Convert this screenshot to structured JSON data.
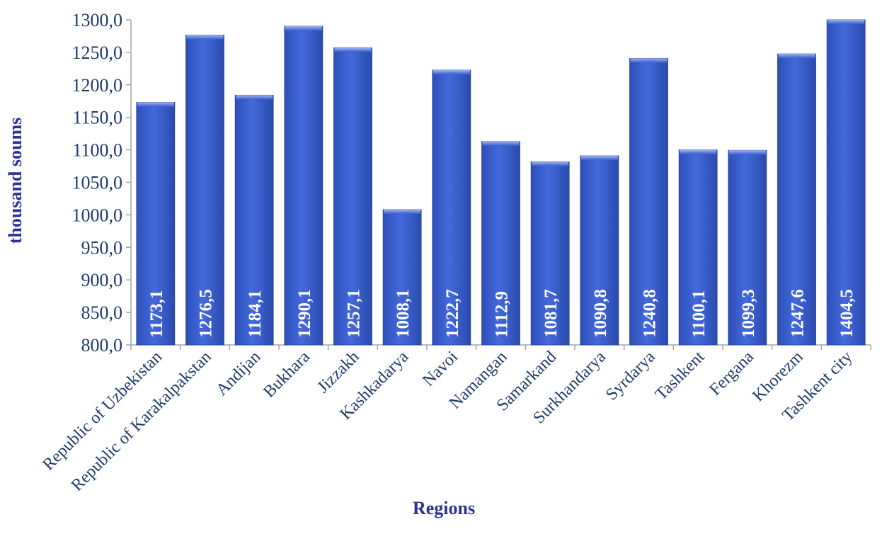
{
  "chart_data": {
    "type": "bar",
    "title": "",
    "xlabel": "Regions",
    "ylabel": "thousand soums",
    "ylim": [
      800,
      1300
    ],
    "yticks": [
      "800,0",
      "850,0",
      "900,0",
      "950,0",
      "1000,0",
      "1050,0",
      "1100,0",
      "1150,0",
      "1200,0",
      "1250,0",
      "1300,0"
    ],
    "categories": [
      "Republic of Uzbekistan",
      "Republic of Karakalpakstan",
      "Andijan",
      "Bukhara",
      "Jizzakh",
      "Kashkadarya",
      "Navoi",
      "Namangan",
      "Samarkand",
      "Surkhandarya",
      "Syrdarya",
      "Tashkent",
      "Fergana",
      "Khorezm",
      "Tashkent city"
    ],
    "values": [
      1173.1,
      1276.5,
      1184.1,
      1290.1,
      1257.1,
      1008.1,
      1222.7,
      1112.9,
      1081.7,
      1090.8,
      1240.8,
      1100.1,
      1099.3,
      1247.6,
      1404.5
    ],
    "data_labels": [
      "1173,1",
      "1276,5",
      "1184,1",
      "1290,1",
      "1257,1",
      "1008,1",
      "1222,7",
      "1112,9",
      "1081,7",
      "1090,8",
      "1240,8",
      "1100,1",
      "1099,3",
      "1247,6",
      "1404,5"
    ],
    "bar_color": "#3a5fcd",
    "axis_title_color": "#2e3192",
    "tick_label_color": "#1f3a6b",
    "grid": false,
    "legend": "none"
  }
}
